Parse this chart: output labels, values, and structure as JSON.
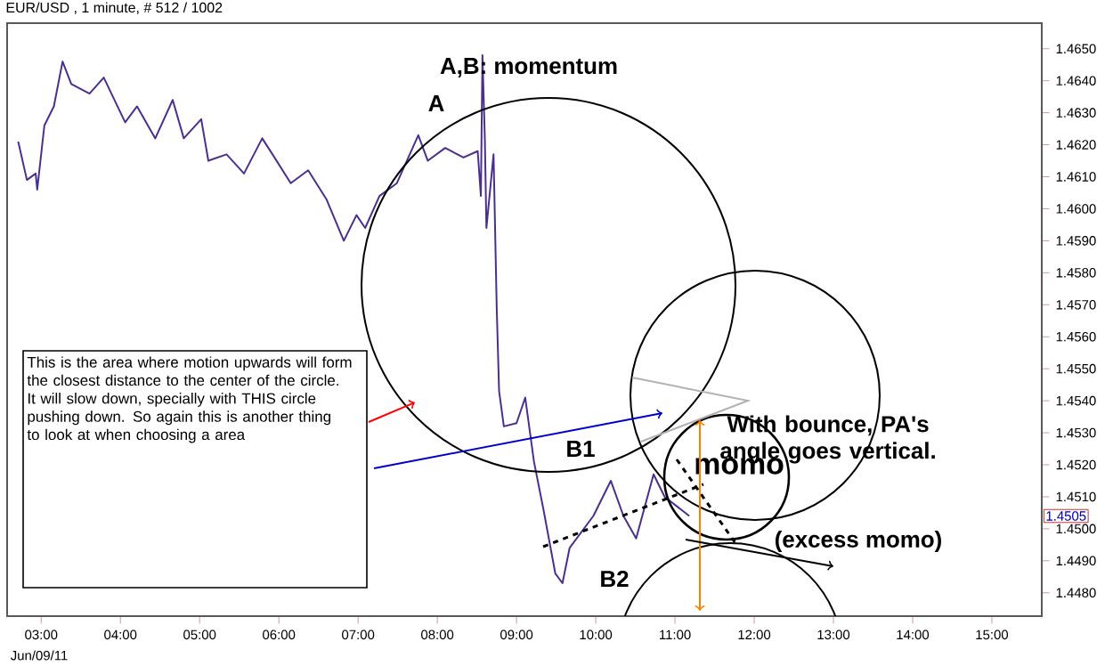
{
  "chart_data": {
    "type": "line",
    "title": "EUR/USD , 1 minute, # 512 / 1002",
    "x": [
      2.71,
      2.82,
      2.93,
      2.95,
      3.04,
      3.16,
      3.27,
      3.38,
      3.61,
      3.79,
      4.06,
      4.21,
      4.44,
      4.66,
      4.8,
      5.02,
      5.11,
      5.34,
      5.56,
      5.79,
      5.92,
      6.15,
      6.37,
      6.6,
      6.82,
      6.98,
      7.09,
      7.27,
      7.49,
      7.76,
      7.88,
      8.1,
      8.33,
      8.51,
      8.55,
      8.57,
      8.6,
      8.62,
      8.71,
      8.75,
      8.78,
      8.84,
      9.0,
      9.11,
      9.22,
      9.34,
      9.49,
      9.58,
      9.67,
      9.97,
      10.19,
      10.35,
      10.51,
      10.73,
      10.87,
      11.18
    ],
    "series": [
      {
        "color": "#4b2f8f",
        "values": [
          1.4621,
          1.4609,
          1.4611,
          1.4606,
          1.4626,
          1.4632,
          1.4646,
          1.4639,
          1.4636,
          1.4641,
          1.4627,
          1.4632,
          1.4622,
          1.4634,
          1.4622,
          1.4628,
          1.4615,
          1.4617,
          1.4611,
          1.4622,
          1.4617,
          1.4608,
          1.4612,
          1.4603,
          1.459,
          1.4598,
          1.4594,
          1.4604,
          1.4608,
          1.4623,
          1.4615,
          1.4619,
          1.4616,
          1.4618,
          1.4604,
          1.4648,
          1.4622,
          1.4594,
          1.4617,
          1.4569,
          1.4543,
          1.4532,
          1.4533,
          1.4541,
          1.4521,
          1.4506,
          1.4486,
          1.4483,
          1.4494,
          1.4504,
          1.4515,
          1.4504,
          1.4497,
          1.4517,
          1.451,
          1.4504
        ]
      }
    ],
    "xlim": [
      2.57,
      15.63
    ],
    "ylim": [
      1.44727,
      1.4658
    ],
    "xticks": [
      {
        "value": 3,
        "label": "03:00"
      },
      {
        "value": 4,
        "label": "04:00"
      },
      {
        "value": 5,
        "label": "05:00"
      },
      {
        "value": 6,
        "label": "06:00"
      },
      {
        "value": 7,
        "label": "07:00"
      },
      {
        "value": 8,
        "label": "08:00"
      },
      {
        "value": 9,
        "label": "09:00"
      },
      {
        "value": 10,
        "label": "10:00"
      },
      {
        "value": 11,
        "label": "11:00"
      },
      {
        "value": 12,
        "label": "12:00"
      },
      {
        "value": 13,
        "label": "13:00"
      },
      {
        "value": 14,
        "label": "14:00"
      },
      {
        "value": 15,
        "label": "15:00"
      }
    ],
    "yticks": [
      {
        "value": 1.448,
        "label": "1.4480"
      },
      {
        "value": 1.449,
        "label": "1.4490"
      },
      {
        "value": 1.45,
        "label": "1.4500"
      },
      {
        "value": 1.451,
        "label": "1.4510"
      },
      {
        "value": 1.452,
        "label": "1.4520"
      },
      {
        "value": 1.453,
        "label": "1.4530"
      },
      {
        "value": 1.454,
        "label": "1.4540"
      },
      {
        "value": 1.455,
        "label": "1.4550"
      },
      {
        "value": 1.456,
        "label": "1.4560"
      },
      {
        "value": 1.457,
        "label": "1.4570"
      },
      {
        "value": 1.458,
        "label": "1.4580"
      },
      {
        "value": 1.459,
        "label": "1.4590"
      },
      {
        "value": 1.46,
        "label": "1.4600"
      },
      {
        "value": 1.461,
        "label": "1.4610"
      },
      {
        "value": 1.462,
        "label": "1.4620"
      },
      {
        "value": 1.463,
        "label": "1.4630"
      },
      {
        "value": 1.464,
        "label": "1.4640"
      },
      {
        "value": 1.465,
        "label": "1.4650"
      }
    ],
    "annotations": [
      "A,B: momentum",
      "A",
      "B1",
      "B2",
      {
        "text": "With bounce, PA's angle goes vertical.",
        "x": 11.18,
        "y": 1.4504
      },
      {
        "text": "momo",
        "x": 11.18,
        "y": 1.4504
      },
      "(excess momo)",
      "This is the area where motion upwards will form the closest distance to the center of the circle. It will slow down, specially with THIS circle pushing down.  So again this is another thing to look at when choosing a area",
      "1.4505",
      "Jun/09/11"
    ]
  }
}
